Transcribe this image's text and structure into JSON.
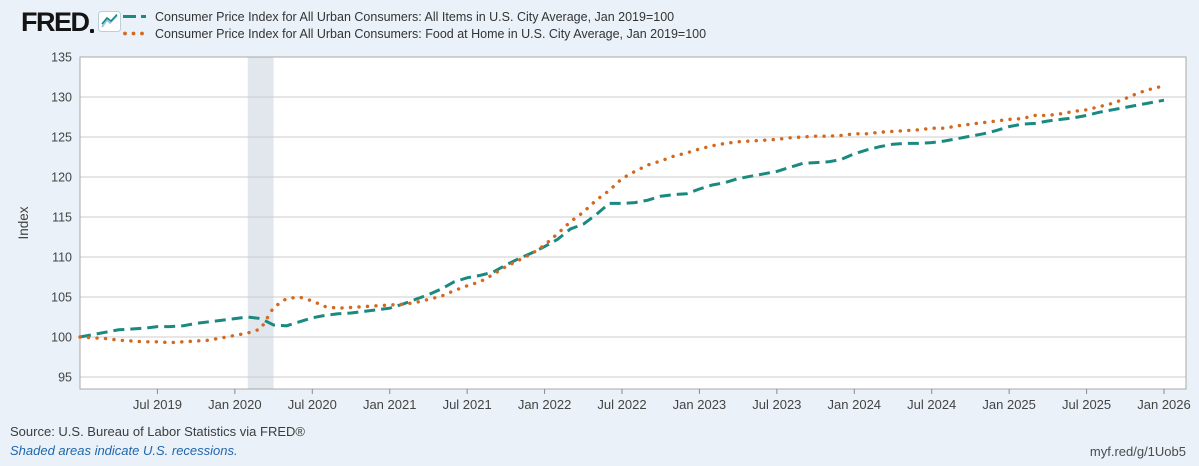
{
  "header": {
    "logo_text": "FRED",
    "logo_icon": "fred-graph-icon"
  },
  "footer": {
    "source_text": "Source: U.S. Bureau of Labor Statistics via FRED®",
    "recession_note": "Shaded areas indicate U.S. recessions.",
    "short_url": "myf.red/g/1Uob5"
  },
  "chart_data": {
    "type": "line",
    "ylabel": "Index",
    "ylim": [
      93.5,
      135
    ],
    "yticks": [
      95,
      100,
      105,
      110,
      115,
      120,
      125,
      130,
      135
    ],
    "grid": "horizontal-only",
    "legend_position": "top-left",
    "x_start": "Jan 2019",
    "x_frequency": "monthly",
    "x_months_total": 84,
    "xticks": [
      {
        "m": 6,
        "label": "Jul 2019"
      },
      {
        "m": 12,
        "label": "Jan 2020"
      },
      {
        "m": 18,
        "label": "Jul 2020"
      },
      {
        "m": 24,
        "label": "Jan 2021"
      },
      {
        "m": 30,
        "label": "Jul 2021"
      },
      {
        "m": 36,
        "label": "Jan 2022"
      },
      {
        "m": 42,
        "label": "Jul 2022"
      },
      {
        "m": 48,
        "label": "Jan 2023"
      },
      {
        "m": 54,
        "label": "Jul 2023"
      },
      {
        "m": 60,
        "label": "Jan 2024"
      },
      {
        "m": 66,
        "label": "Jul 2024"
      },
      {
        "m": 72,
        "label": "Jan 2025"
      },
      {
        "m": 78,
        "label": "Jul 2025"
      },
      {
        "m": 84,
        "label": "Jan 2026"
      }
    ],
    "recession_bands": [
      {
        "from_month": 13,
        "to_month": 15,
        "from_label": "Feb 2020",
        "to_label": "Apr 2020"
      }
    ],
    "colors": {
      "recession_band": "#e1e7ed",
      "gridline": "#cdcdcd",
      "border": "#a9a9a9",
      "tick": "#8a8a8a",
      "plot_background": "#ffffff",
      "page_background": "#eaf1f8"
    },
    "series": [
      {
        "name": "Consumer Price Index for All Urban Consumers: All Items in U.S. City Average, Jan 2019=100",
        "color": "#1a8a80",
        "style": "dashed",
        "values": [
          100.0,
          100.3,
          100.6,
          100.9,
          101.0,
          101.1,
          101.3,
          101.3,
          101.4,
          101.7,
          101.9,
          102.1,
          102.3,
          102.5,
          102.3,
          101.5,
          101.4,
          101.9,
          102.4,
          102.7,
          102.9,
          103.0,
          103.2,
          103.4,
          103.6,
          104.1,
          104.7,
          105.3,
          106.0,
          106.9,
          107.4,
          107.7,
          108.1,
          109.0,
          109.8,
          110.5,
          111.3,
          112.2,
          113.5,
          114.1,
          115.3,
          116.7,
          116.7,
          116.8,
          117.1,
          117.6,
          117.8,
          117.9,
          118.5,
          119.0,
          119.3,
          119.8,
          120.1,
          120.4,
          120.7,
          121.2,
          121.7,
          121.8,
          121.9,
          122.2,
          122.9,
          123.4,
          123.8,
          124.1,
          124.2,
          124.2,
          124.3,
          124.5,
          124.8,
          125.1,
          125.4,
          125.8,
          126.3,
          126.6,
          126.7,
          127.0,
          127.2,
          127.4,
          127.7,
          128.1,
          128.4,
          128.7,
          129.0,
          129.3,
          129.6
        ]
      },
      {
        "name": "Consumer Price Index for All Urban Consumers: Food at Home in U.S. City Average, Jan 2019=100",
        "color": "#d2691e",
        "style": "dotted",
        "values": [
          100.0,
          99.9,
          99.8,
          99.6,
          99.5,
          99.4,
          99.4,
          99.3,
          99.4,
          99.5,
          99.6,
          99.9,
          100.2,
          100.5,
          101.0,
          103.7,
          104.8,
          105.0,
          104.5,
          103.8,
          103.6,
          103.7,
          103.8,
          103.9,
          104.0,
          104.1,
          104.3,
          104.7,
          105.1,
          105.8,
          106.4,
          106.9,
          107.8,
          108.8,
          109.6,
          110.4,
          111.5,
          112.9,
          114.4,
          115.6,
          117.1,
          118.3,
          119.8,
          120.7,
          121.5,
          122.0,
          122.6,
          123.0,
          123.5,
          123.9,
          124.2,
          124.4,
          124.5,
          124.6,
          124.7,
          124.9,
          125.0,
          125.1,
          125.1,
          125.2,
          125.4,
          125.4,
          125.6,
          125.7,
          125.8,
          125.9,
          126.1,
          126.1,
          126.4,
          126.6,
          126.8,
          127.0,
          127.2,
          127.3,
          127.7,
          127.7,
          127.9,
          128.2,
          128.4,
          128.8,
          129.2,
          129.8,
          130.5,
          131.0,
          131.4
        ]
      }
    ]
  }
}
